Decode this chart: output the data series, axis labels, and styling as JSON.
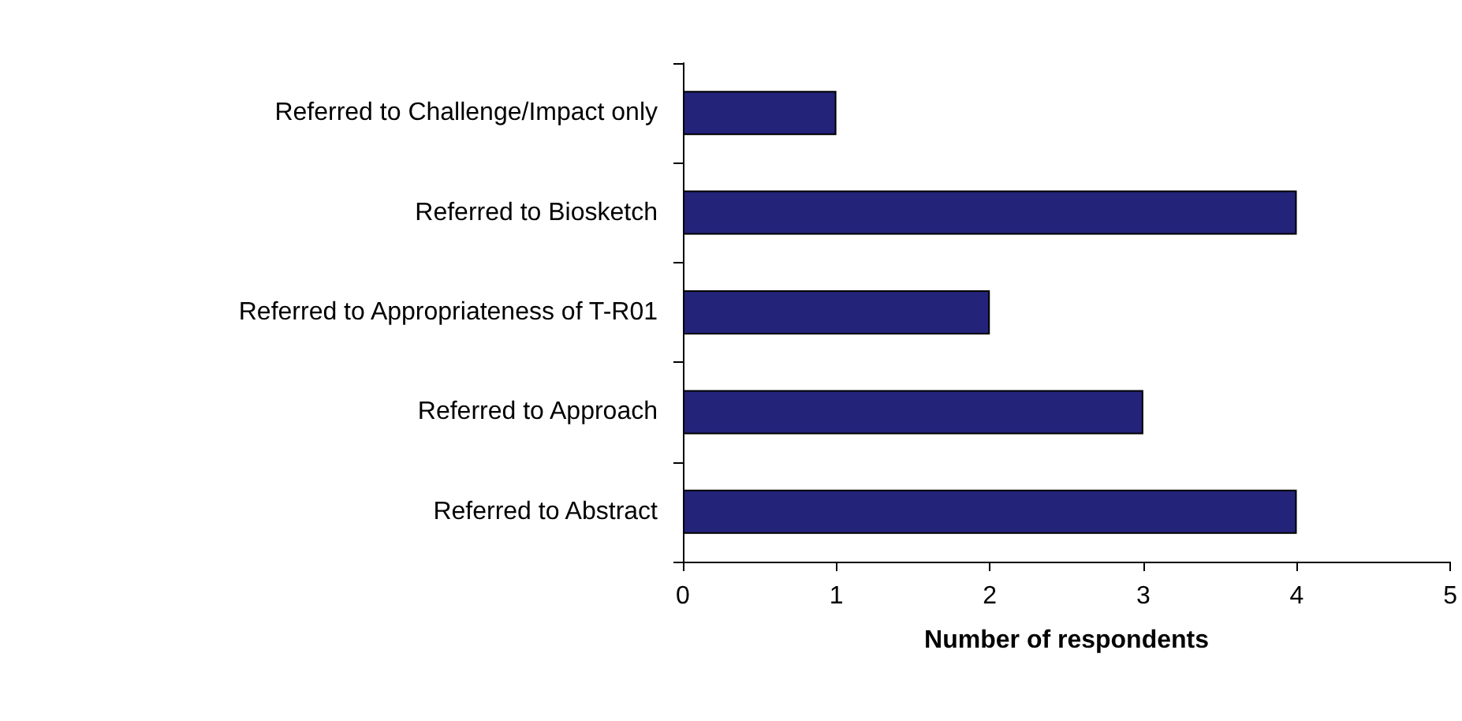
{
  "chart_data": {
    "type": "bar",
    "orientation": "horizontal",
    "categories": [
      "Referred to Challenge/Impact only",
      "Referred to Biosketch",
      "Referred to Appropriateness of T-R01",
      "Referred to Approach",
      "Referred to Abstract"
    ],
    "values": [
      1,
      4,
      2,
      3,
      4
    ],
    "color": "#23237a",
    "xlabel": "Number of respondents",
    "xlim": [
      0,
      5
    ],
    "xticks": [
      0,
      1,
      2,
      3,
      4,
      5
    ],
    "grid": false
  }
}
